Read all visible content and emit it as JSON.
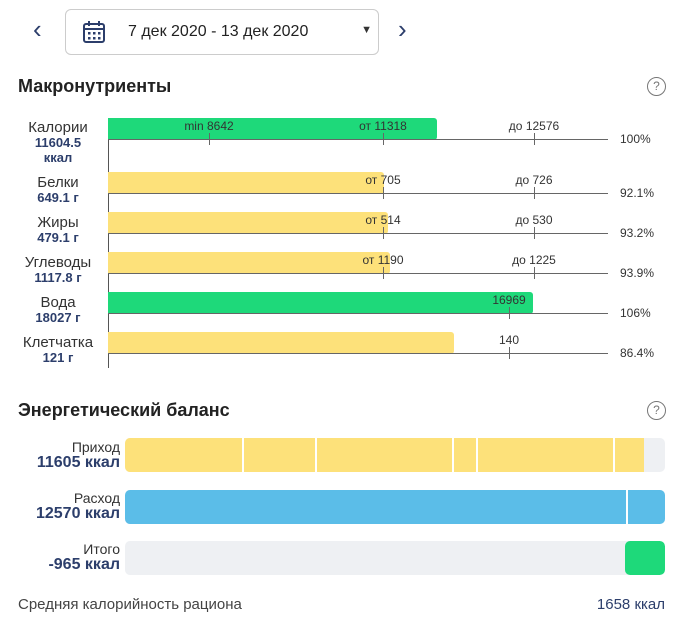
{
  "header": {
    "prev_icon": "chevron-left-icon",
    "next_icon": "chevron-right-icon",
    "calendar_icon": "calendar-icon",
    "date_range": "7 дек 2020 - 13 дек 2020"
  },
  "macros": {
    "title": "Макронутриенты",
    "help": "?",
    "rows": [
      {
        "name": "Калории",
        "amount": "11604.5",
        "unit": "ккал",
        "fill": 0.658,
        "color": "#1ed97a",
        "ticks": [
          "min 8642",
          "от 11318",
          "до 12576"
        ],
        "percent": "100%"
      },
      {
        "name": "Белки",
        "amount": "649.1 г",
        "fill": 0.552,
        "color": "#fde17a",
        "ticks": [
          "от 705",
          "до 726"
        ],
        "percent": "92.1%"
      },
      {
        "name": "Жиры",
        "amount": "479.1 г",
        "fill": 0.56,
        "color": "#fde17a",
        "ticks": [
          "от 514",
          "до 530"
        ],
        "percent": "93.2%"
      },
      {
        "name": "Углеводы",
        "amount": "1117.8 г",
        "fill": 0.564,
        "color": "#fde17a",
        "ticks": [
          "от 1190",
          "до 1225"
        ],
        "percent": "93.9%"
      },
      {
        "name": "Вода",
        "amount": "18027 г",
        "fill": 0.85,
        "color": "#1ed97a",
        "ticks": [
          "16969"
        ],
        "percent": "106%"
      },
      {
        "name": "Клетчатка",
        "amount": "121 г",
        "fill": 0.692,
        "color": "#fde17a",
        "ticks": [
          "140"
        ],
        "percent": "86.4%"
      }
    ]
  },
  "energy": {
    "title": "Энергетический баланс",
    "help": "?",
    "income": {
      "label": "Приход",
      "value": "11605 ккал",
      "fill": 0.961,
      "color": "#fde17a"
    },
    "expense": {
      "label": "Расход",
      "value": "12570 ккал",
      "fill": 1.0,
      "color": "#5bbde8"
    },
    "total": {
      "label": "Итого",
      "value": "-965 ккал",
      "fill": 0.074,
      "color": "#1ed97a"
    }
  },
  "footer": {
    "label": "Средняя калорийность рациона",
    "value": "1658 ккал"
  }
}
